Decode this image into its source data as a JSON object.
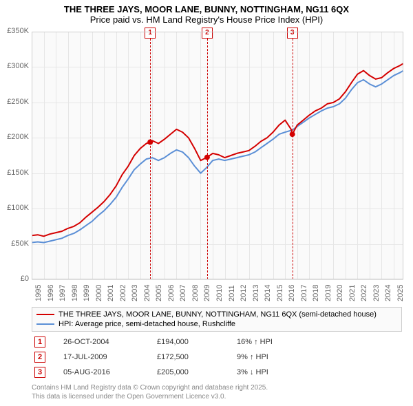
{
  "title": {
    "line1": "THE THREE JAYS, MOOR LANE, BUNNY, NOTTINGHAM, NG11 6QX",
    "line2": "Price paid vs. HM Land Registry's House Price Index (HPI)"
  },
  "chart": {
    "type": "line",
    "background_color": "#fafafa",
    "grid_color": "#e6e6e6",
    "axis_color": "#cccccc",
    "tick_font_color": "#666666",
    "tick_fontsize": 11,
    "x": {
      "min": 1995,
      "max": 2025.8,
      "ticks": [
        1995,
        1996,
        1997,
        1998,
        1999,
        2000,
        2001,
        2002,
        2003,
        2004,
        2005,
        2006,
        2007,
        2008,
        2009,
        2010,
        2011,
        2012,
        2013,
        2014,
        2015,
        2016,
        2017,
        2018,
        2019,
        2020,
        2021,
        2022,
        2023,
        2024,
        2025
      ]
    },
    "y": {
      "min": 0,
      "max": 350000,
      "step": 50000,
      "tick_labels": [
        "£0",
        "£50K",
        "£100K",
        "£150K",
        "£200K",
        "£250K",
        "£300K",
        "£350K"
      ]
    },
    "series": [
      {
        "id": "price_paid",
        "label": "THE THREE JAYS, MOOR LANE, BUNNY, NOTTINGHAM, NG11 6QX (semi-detached house)",
        "color": "#d40000",
        "line_width": 2,
        "points": [
          [
            1995.0,
            62000
          ],
          [
            1995.5,
            63000
          ],
          [
            1996.0,
            61000
          ],
          [
            1996.5,
            64000
          ],
          [
            1997.0,
            66000
          ],
          [
            1997.5,
            68000
          ],
          [
            1998.0,
            72000
          ],
          [
            1998.5,
            75000
          ],
          [
            1999.0,
            80000
          ],
          [
            1999.5,
            88000
          ],
          [
            2000.0,
            95000
          ],
          [
            2000.5,
            102000
          ],
          [
            2001.0,
            110000
          ],
          [
            2001.5,
            120000
          ],
          [
            2002.0,
            132000
          ],
          [
            2002.5,
            148000
          ],
          [
            2003.0,
            160000
          ],
          [
            2003.5,
            175000
          ],
          [
            2004.0,
            185000
          ],
          [
            2004.5,
            192000
          ],
          [
            2004.82,
            194000
          ],
          [
            2005.0,
            196000
          ],
          [
            2005.5,
            192000
          ],
          [
            2006.0,
            198000
          ],
          [
            2006.5,
            205000
          ],
          [
            2007.0,
            212000
          ],
          [
            2007.5,
            208000
          ],
          [
            2008.0,
            200000
          ],
          [
            2008.5,
            185000
          ],
          [
            2009.0,
            168000
          ],
          [
            2009.54,
            172500
          ],
          [
            2010.0,
            178000
          ],
          [
            2010.5,
            176000
          ],
          [
            2011.0,
            172000
          ],
          [
            2011.5,
            175000
          ],
          [
            2012.0,
            178000
          ],
          [
            2012.5,
            180000
          ],
          [
            2013.0,
            182000
          ],
          [
            2013.5,
            188000
          ],
          [
            2014.0,
            195000
          ],
          [
            2014.5,
            200000
          ],
          [
            2015.0,
            208000
          ],
          [
            2015.5,
            218000
          ],
          [
            2016.0,
            225000
          ],
          [
            2016.5,
            212000
          ],
          [
            2016.6,
            205000
          ],
          [
            2017.0,
            218000
          ],
          [
            2017.5,
            225000
          ],
          [
            2018.0,
            232000
          ],
          [
            2018.5,
            238000
          ],
          [
            2019.0,
            242000
          ],
          [
            2019.5,
            248000
          ],
          [
            2020.0,
            250000
          ],
          [
            2020.5,
            255000
          ],
          [
            2021.0,
            265000
          ],
          [
            2021.5,
            278000
          ],
          [
            2022.0,
            290000
          ],
          [
            2022.5,
            295000
          ],
          [
            2023.0,
            288000
          ],
          [
            2023.5,
            283000
          ],
          [
            2024.0,
            285000
          ],
          [
            2024.5,
            292000
          ],
          [
            2025.0,
            298000
          ],
          [
            2025.5,
            302000
          ],
          [
            2025.8,
            305000
          ]
        ]
      },
      {
        "id": "hpi",
        "label": "HPI: Average price, semi-detached house, Rushcliffe",
        "color": "#5b8fd6",
        "line_width": 2,
        "points": [
          [
            1995.0,
            52000
          ],
          [
            1995.5,
            53000
          ],
          [
            1996.0,
            52000
          ],
          [
            1996.5,
            54000
          ],
          [
            1997.0,
            56000
          ],
          [
            1997.5,
            58000
          ],
          [
            1998.0,
            62000
          ],
          [
            1998.5,
            65000
          ],
          [
            1999.0,
            70000
          ],
          [
            1999.5,
            76000
          ],
          [
            2000.0,
            82000
          ],
          [
            2000.5,
            90000
          ],
          [
            2001.0,
            97000
          ],
          [
            2001.5,
            106000
          ],
          [
            2002.0,
            116000
          ],
          [
            2002.5,
            130000
          ],
          [
            2003.0,
            142000
          ],
          [
            2003.5,
            155000
          ],
          [
            2004.0,
            163000
          ],
          [
            2004.5,
            170000
          ],
          [
            2005.0,
            172000
          ],
          [
            2005.5,
            168000
          ],
          [
            2006.0,
            172000
          ],
          [
            2006.5,
            178000
          ],
          [
            2007.0,
            183000
          ],
          [
            2007.5,
            180000
          ],
          [
            2008.0,
            172000
          ],
          [
            2008.5,
            160000
          ],
          [
            2009.0,
            150000
          ],
          [
            2009.5,
            158000
          ],
          [
            2010.0,
            168000
          ],
          [
            2010.5,
            170000
          ],
          [
            2011.0,
            168000
          ],
          [
            2011.5,
            170000
          ],
          [
            2012.0,
            172000
          ],
          [
            2012.5,
            174000
          ],
          [
            2013.0,
            176000
          ],
          [
            2013.5,
            180000
          ],
          [
            2014.0,
            186000
          ],
          [
            2014.5,
            192000
          ],
          [
            2015.0,
            198000
          ],
          [
            2015.5,
            205000
          ],
          [
            2016.0,
            208000
          ],
          [
            2016.6,
            211000
          ],
          [
            2017.0,
            216000
          ],
          [
            2017.5,
            222000
          ],
          [
            2018.0,
            228000
          ],
          [
            2018.5,
            233000
          ],
          [
            2019.0,
            238000
          ],
          [
            2019.5,
            242000
          ],
          [
            2020.0,
            244000
          ],
          [
            2020.5,
            248000
          ],
          [
            2021.0,
            256000
          ],
          [
            2021.5,
            268000
          ],
          [
            2022.0,
            278000
          ],
          [
            2022.5,
            282000
          ],
          [
            2023.0,
            276000
          ],
          [
            2023.5,
            272000
          ],
          [
            2024.0,
            276000
          ],
          [
            2024.5,
            282000
          ],
          [
            2025.0,
            288000
          ],
          [
            2025.5,
            292000
          ],
          [
            2025.8,
            295000
          ]
        ]
      }
    ],
    "sale_markers": [
      {
        "x": 2004.82,
        "y": 194000
      },
      {
        "x": 2009.54,
        "y": 172500
      },
      {
        "x": 2016.6,
        "y": 205000
      }
    ],
    "sale_marker_color": "#d40000",
    "sale_marker_radius": 4,
    "event_lines": [
      {
        "n": "1",
        "x": 2004.82
      },
      {
        "n": "2",
        "x": 2009.54
      },
      {
        "n": "3",
        "x": 2016.6
      }
    ],
    "event_line_color": "#cc0000"
  },
  "legend": {
    "border_color": "#cccccc",
    "background_color": "#fafafa"
  },
  "events_table": {
    "rows": [
      {
        "n": "1",
        "date": "26-OCT-2004",
        "price": "£194,000",
        "diff": "16% ↑ HPI"
      },
      {
        "n": "2",
        "date": "17-JUL-2009",
        "price": "£172,500",
        "diff": "9% ↑ HPI"
      },
      {
        "n": "3",
        "date": "05-AUG-2016",
        "price": "£205,000",
        "diff": "3% ↓ HPI"
      }
    ]
  },
  "footer": {
    "line1": "Contains HM Land Registry data © Crown copyright and database right 2025.",
    "line2": "This data is licensed under the Open Government Licence v3.0."
  }
}
